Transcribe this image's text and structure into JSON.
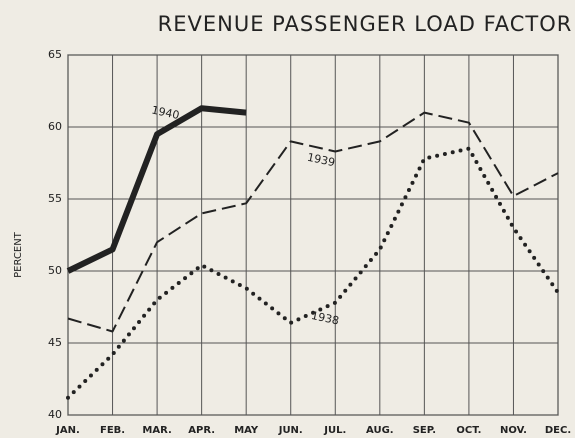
{
  "chart_data": {
    "type": "line",
    "title": "REVENUE PASSENGER LOAD FACTOR",
    "y_label": "PERCENT",
    "categories": [
      "JAN.",
      "FEB.",
      "MAR.",
      "APR.",
      "MAY",
      "JUN.",
      "JUL.",
      "AUG.",
      "SEP.",
      "OCT.",
      "NOV.",
      "DEC."
    ],
    "series": [
      {
        "name": "1940",
        "color": "#222222",
        "line_style": "solid",
        "values": [
          50.0,
          51.5,
          59.5,
          61.3,
          61.0,
          null,
          null,
          null,
          null,
          null,
          null,
          null
        ]
      },
      {
        "name": "1939",
        "color": "#222222",
        "line_style": "dashed",
        "values": [
          46.7,
          45.8,
          52.0,
          54.0,
          54.7,
          59.0,
          58.3,
          59.0,
          61.0,
          60.3,
          55.2,
          56.8
        ]
      },
      {
        "name": "1938",
        "color": "#222222",
        "line_style": "dotted",
        "values": [
          41.2,
          44.2,
          48.0,
          50.4,
          48.8,
          46.4,
          47.8,
          51.5,
          57.8,
          58.5,
          53.0,
          48.5
        ]
      }
    ],
    "ylim": [
      40,
      65
    ],
    "yticks": [
      40,
      45,
      50,
      55,
      60,
      65
    ],
    "grid": true
  }
}
